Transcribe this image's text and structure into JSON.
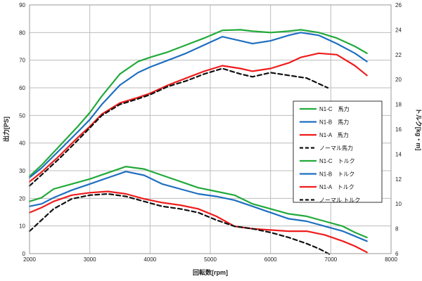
{
  "chart_data": {
    "type": "line",
    "xlabel": "回転数[rpm]",
    "ylabel_left": "出力[PS]",
    "ylabel_right": "トルク[kg・m]",
    "xlim": [
      2000,
      8000
    ],
    "ylim_left": [
      0,
      90
    ],
    "ylim_right": [
      6,
      26
    ],
    "x_ticks": [
      2000,
      3000,
      4000,
      5000,
      6000,
      7000,
      8000
    ],
    "y_ticks_left": [
      0,
      10,
      20,
      30,
      40,
      50,
      60,
      70,
      80,
      90
    ],
    "y_ticks_right": [
      6,
      8,
      10,
      12,
      14,
      16,
      18,
      20,
      22,
      24,
      26
    ],
    "grid": true,
    "legend_position": "right",
    "colors": {
      "green": "#22aa3a",
      "blue": "#1f6fc0",
      "red": "#ee1c1c",
      "black": "#111111"
    },
    "series": [
      {
        "name": "N1-C　馬力",
        "axis": "left",
        "color": "#22aa3a",
        "dash": false,
        "x": [
          2000,
          2200,
          2500,
          2800,
          3000,
          3200,
          3500,
          3800,
          4000,
          4300,
          4600,
          4900,
          5200,
          5500,
          5700,
          6000,
          6300,
          6500,
          6800,
          7100,
          7400,
          7600
        ],
        "y": [
          28,
          32,
          39,
          46,
          51,
          57,
          65,
          69.5,
          71,
          73,
          75.5,
          78,
          80.8,
          81,
          80.5,
          80,
          80.5,
          81,
          80,
          78,
          75,
          72.5
        ]
      },
      {
        "name": "N1-B　馬力",
        "axis": "left",
        "color": "#1f6fc0",
        "dash": false,
        "x": [
          2000,
          2200,
          2500,
          2800,
          3000,
          3200,
          3500,
          3800,
          4000,
          4300,
          4600,
          4900,
          5200,
          5500,
          5700,
          6000,
          6300,
          6500,
          6800,
          7100,
          7400,
          7600
        ],
        "y": [
          27.5,
          31,
          37.5,
          44,
          48.5,
          54,
          61,
          65.5,
          67.5,
          70,
          72.5,
          75.5,
          78.5,
          77,
          76,
          77,
          79,
          80,
          79,
          76,
          72.5,
          69.5
        ]
      },
      {
        "name": "N1-A　馬力",
        "axis": "left",
        "color": "#ee1c1c",
        "dash": false,
        "x": [
          2000,
          2200,
          2500,
          2800,
          3000,
          3200,
          3500,
          3800,
          4000,
          4300,
          4600,
          4900,
          5200,
          5500,
          5700,
          6000,
          6300,
          6500,
          6800,
          7100,
          7400,
          7600
        ],
        "y": [
          26,
          29.5,
          35.5,
          42,
          46,
          50.5,
          54.5,
          56.5,
          58,
          61,
          63.5,
          66,
          68,
          67,
          66,
          67,
          69,
          71,
          72.5,
          72,
          68,
          64.5
        ]
      },
      {
        "name": "ノーマル馬力",
        "axis": "left",
        "color": "#111111",
        "dash": true,
        "x": [
          2000,
          2200,
          2500,
          2800,
          3000,
          3200,
          3500,
          3800,
          4000,
          4300,
          4600,
          4900,
          5200,
          5500,
          5700,
          6000,
          6300,
          6600,
          6800,
          6950
        ],
        "y": [
          24.5,
          28.5,
          34.5,
          41,
          45.5,
          50,
          54,
          56,
          57.5,
          60.5,
          62.5,
          65,
          67,
          65,
          64,
          65.5,
          64.5,
          63.5,
          61.5,
          60
        ]
      },
      {
        "name": "N1-C　トルク",
        "axis": "right",
        "color": "#22aa3a",
        "dash": false,
        "x": [
          2000,
          2200,
          2400,
          2700,
          3000,
          3300,
          3600,
          3900,
          4200,
          4500,
          4800,
          5100,
          5400,
          5700,
          6000,
          6300,
          6600,
          6900,
          7200,
          7400,
          7600
        ],
        "y": [
          10.2,
          10.5,
          11.2,
          11.6,
          12,
          12.5,
          13,
          12.8,
          12.3,
          11.8,
          11.3,
          11,
          10.7,
          10,
          9.6,
          9.2,
          9,
          8.6,
          8.2,
          7.7,
          7.3
        ]
      },
      {
        "name": "N1-B　トルク",
        "axis": "right",
        "color": "#1f6fc0",
        "dash": false,
        "x": [
          2000,
          2200,
          2400,
          2700,
          3000,
          3300,
          3600,
          3900,
          4200,
          4500,
          4800,
          5100,
          5400,
          5700,
          6000,
          6300,
          6600,
          6900,
          7200,
          7400,
          7600
        ],
        "y": [
          9.8,
          10,
          10.5,
          11.1,
          11.6,
          12.1,
          12.6,
          12.3,
          11.6,
          11.2,
          10.8,
          10.6,
          10.3,
          9.8,
          9.3,
          8.8,
          8.6,
          8.2,
          7.8,
          7.4,
          7
        ]
      },
      {
        "name": "N1-A　トルク",
        "axis": "right",
        "color": "#ee1c1c",
        "dash": false,
        "x": [
          2000,
          2200,
          2400,
          2700,
          3000,
          3300,
          3600,
          3900,
          4200,
          4500,
          4800,
          5100,
          5400,
          5700,
          6000,
          6300,
          6600,
          6900,
          7200,
          7400,
          7600
        ],
        "y": [
          9.3,
          9.7,
          10.2,
          10.7,
          10.9,
          11,
          10.8,
          10.4,
          10.1,
          9.9,
          9.6,
          9,
          8.2,
          8,
          7.9,
          7.8,
          7.8,
          7.5,
          7.0,
          6.6,
          6.1
        ]
      },
      {
        "name": "ノーマル トルク",
        "axis": "right",
        "color": "#111111",
        "dash": true,
        "x": [
          2000,
          2200,
          2400,
          2700,
          3000,
          3300,
          3600,
          3900,
          4200,
          4500,
          4800,
          5100,
          5400,
          5700,
          6000,
          6300,
          6600,
          6800,
          7000
        ],
        "y": [
          7.8,
          8.7,
          9.6,
          10.4,
          10.7,
          10.8,
          10.6,
          10.2,
          9.8,
          9.6,
          9.3,
          8.7,
          8.2,
          8,
          7.7,
          7.3,
          6.8,
          6.4,
          5.9
        ]
      }
    ]
  }
}
